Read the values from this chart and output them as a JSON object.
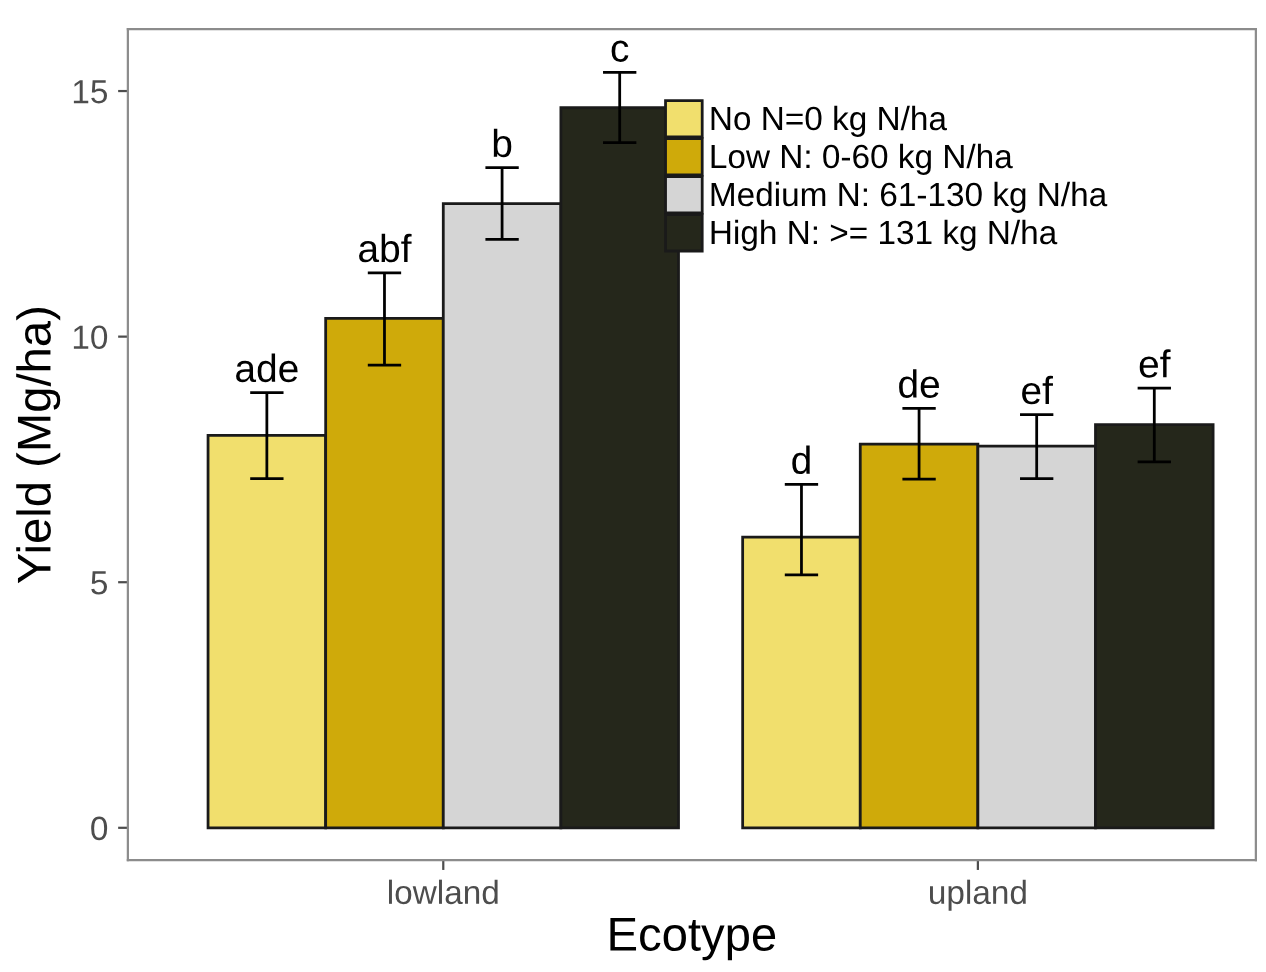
{
  "chart_data": {
    "type": "bar",
    "xlabel": "Ecotype",
    "ylabel": "Yield (Mg/ha)",
    "categories": [
      "lowland",
      "upland"
    ],
    "series": [
      {
        "name": "No N=0 kg N/ha",
        "color": "#f1df6d",
        "values": [
          7.99,
          5.92
        ],
        "errors": [
          [
            7.11,
            8.86
          ],
          [
            5.15,
            6.99
          ]
        ],
        "value_labels": [
          "ade",
          "d"
        ]
      },
      {
        "name": "Low N: 0-60 kg N/ha",
        "color": "#cfaa0a",
        "values": [
          10.37,
          7.81
        ],
        "errors": [
          [
            9.42,
            11.3
          ],
          [
            7.1,
            8.54
          ]
        ],
        "value_labels": [
          "abf",
          "de"
        ]
      },
      {
        "name": "Medium N: 61-130 kg N/ha",
        "color": "#d5d5d5",
        "values": [
          12.71,
          7.77
        ],
        "errors": [
          [
            11.98,
            13.44
          ],
          [
            7.11,
            8.41
          ]
        ],
        "value_labels": [
          "b",
          "ef"
        ]
      },
      {
        "name": "High N: >= 131 kg N/ha",
        "color": "#25271b",
        "values": [
          14.66,
          8.21
        ],
        "errors": [
          [
            13.95,
            15.38
          ],
          [
            7.45,
            8.95
          ]
        ],
        "value_labels": [
          "c",
          "ef"
        ]
      }
    ],
    "ylim": [
      -0.66,
      16.26
    ],
    "yticks": [
      0,
      5,
      10,
      15
    ],
    "grid": false,
    "legend": "top right"
  }
}
